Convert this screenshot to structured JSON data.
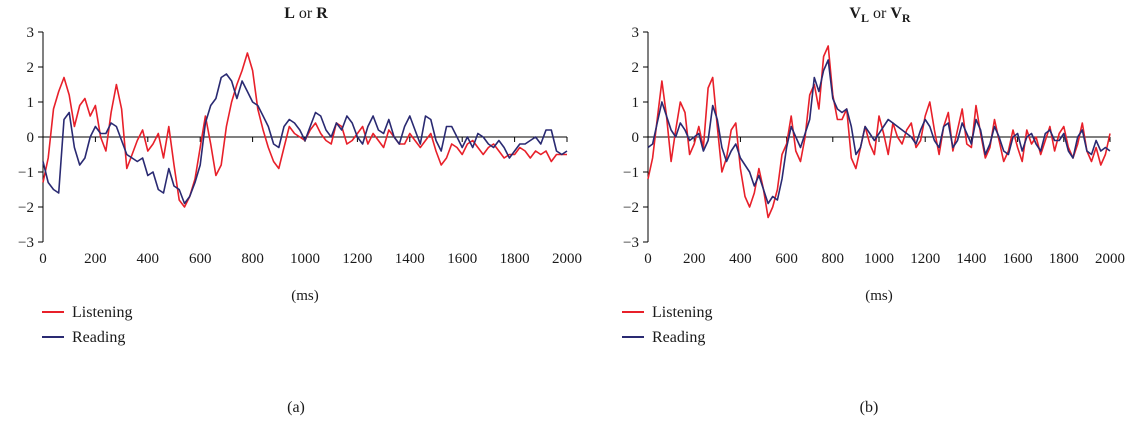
{
  "figure": {
    "panels": [
      {
        "label": "(a)"
      },
      {
        "label": "(b)"
      }
    ]
  },
  "chart_data": [
    {
      "type": "line",
      "title_parts": [
        {
          "text": "L",
          "bold": true
        },
        {
          "text": " or ",
          "bold": false
        },
        {
          "text": "R",
          "bold": true
        }
      ],
      "xlabel": "(ms)",
      "ylabel": "",
      "xlim": [
        0,
        2000
      ],
      "ylim": [
        -3,
        3
      ],
      "xticks": [
        0,
        200,
        400,
        600,
        800,
        1000,
        1200,
        1400,
        1600,
        1800,
        2000
      ],
      "yticks": [
        3,
        2,
        1,
        0,
        -1,
        -2,
        -3
      ],
      "ytick_labels": [
        "3",
        "2",
        "1",
        "0",
        "−1",
        "−2",
        "−3"
      ],
      "grid": false,
      "legend_position": "bottom-left",
      "series": [
        {
          "name": "Listening",
          "color": "#e8202a",
          "x": [
            0,
            20,
            40,
            60,
            80,
            100,
            120,
            140,
            160,
            180,
            200,
            220,
            240,
            260,
            280,
            300,
            320,
            340,
            360,
            380,
            400,
            420,
            440,
            460,
            480,
            500,
            520,
            540,
            560,
            580,
            600,
            620,
            640,
            660,
            680,
            700,
            720,
            740,
            760,
            780,
            800,
            820,
            840,
            860,
            880,
            900,
            920,
            940,
            960,
            980,
            1000,
            1020,
            1040,
            1060,
            1080,
            1100,
            1120,
            1140,
            1160,
            1180,
            1200,
            1220,
            1240,
            1260,
            1280,
            1300,
            1320,
            1340,
            1360,
            1380,
            1400,
            1420,
            1440,
            1460,
            1480,
            1500,
            1520,
            1540,
            1560,
            1580,
            1600,
            1620,
            1640,
            1660,
            1680,
            1700,
            1720,
            1740,
            1760,
            1780,
            1800,
            1820,
            1840,
            1860,
            1880,
            1900,
            1920,
            1940,
            1960,
            1980,
            2000
          ],
          "y": [
            -1.3,
            -0.6,
            0.8,
            1.3,
            1.7,
            1.2,
            0.3,
            0.9,
            1.1,
            0.6,
            0.9,
            0.0,
            -0.4,
            0.7,
            1.5,
            0.8,
            -0.9,
            -0.5,
            -0.1,
            0.2,
            -0.4,
            -0.2,
            0.1,
            -0.6,
            0.3,
            -0.8,
            -1.8,
            -2.0,
            -1.7,
            -1.2,
            -0.3,
            0.6,
            -0.2,
            -1.1,
            -0.8,
            0.3,
            1.0,
            1.5,
            1.9,
            2.4,
            1.9,
            0.8,
            0.2,
            -0.3,
            -0.7,
            -0.9,
            -0.3,
            0.3,
            0.1,
            0.0,
            -0.1,
            0.2,
            0.4,
            0.1,
            -0.1,
            -0.2,
            0.4,
            0.3,
            -0.2,
            -0.1,
            0.1,
            0.3,
            -0.2,
            0.1,
            -0.1,
            -0.3,
            0.2,
            0.0,
            -0.2,
            -0.2,
            0.1,
            -0.1,
            -0.3,
            -0.1,
            0.1,
            -0.4,
            -0.8,
            -0.6,
            -0.2,
            -0.3,
            -0.5,
            -0.2,
            -0.1,
            -0.3,
            -0.5,
            -0.3,
            -0.2,
            -0.4,
            -0.6,
            -0.5,
            -0.5,
            -0.3,
            -0.4,
            -0.6,
            -0.4,
            -0.5,
            -0.4,
            -0.7,
            -0.5,
            -0.5,
            -0.5
          ]
        },
        {
          "name": "Reading",
          "color": "#2a2a72",
          "x": [
            0,
            20,
            40,
            60,
            80,
            100,
            120,
            140,
            160,
            180,
            200,
            220,
            240,
            260,
            280,
            300,
            320,
            340,
            360,
            380,
            400,
            420,
            440,
            460,
            480,
            500,
            520,
            540,
            560,
            580,
            600,
            620,
            640,
            660,
            680,
            700,
            720,
            740,
            760,
            780,
            800,
            820,
            840,
            860,
            880,
            900,
            920,
            940,
            960,
            980,
            1000,
            1020,
            1040,
            1060,
            1080,
            1100,
            1120,
            1140,
            1160,
            1180,
            1200,
            1220,
            1240,
            1260,
            1280,
            1300,
            1320,
            1340,
            1360,
            1380,
            1400,
            1420,
            1440,
            1460,
            1480,
            1500,
            1520,
            1540,
            1560,
            1580,
            1600,
            1620,
            1640,
            1660,
            1680,
            1700,
            1720,
            1740,
            1760,
            1780,
            1800,
            1820,
            1840,
            1860,
            1880,
            1900,
            1920,
            1940,
            1960,
            1980,
            2000
          ],
          "y": [
            -0.7,
            -1.3,
            -1.5,
            -1.6,
            0.5,
            0.7,
            -0.3,
            -0.8,
            -0.6,
            0.0,
            0.3,
            0.1,
            0.1,
            0.4,
            0.3,
            -0.1,
            -0.5,
            -0.6,
            -0.7,
            -0.6,
            -1.1,
            -1.0,
            -1.5,
            -1.6,
            -0.9,
            -1.4,
            -1.5,
            -1.9,
            -1.7,
            -1.3,
            -0.8,
            0.4,
            0.9,
            1.1,
            1.7,
            1.8,
            1.6,
            1.1,
            1.6,
            1.3,
            1.0,
            0.9,
            0.6,
            0.3,
            -0.2,
            -0.3,
            0.3,
            0.5,
            0.4,
            0.2,
            -0.1,
            0.3,
            0.7,
            0.6,
            0.2,
            0.0,
            0.4,
            0.2,
            0.6,
            0.4,
            0.0,
            -0.2,
            0.3,
            0.6,
            0.2,
            0.1,
            0.5,
            0.0,
            -0.2,
            0.3,
            0.6,
            0.2,
            -0.2,
            0.6,
            0.5,
            -0.1,
            -0.4,
            0.3,
            0.3,
            0.0,
            -0.3,
            0.0,
            -0.3,
            0.1,
            0.0,
            -0.2,
            -0.3,
            -0.1,
            -0.3,
            -0.6,
            -0.4,
            -0.2,
            -0.2,
            -0.1,
            0.0,
            -0.2,
            0.2,
            0.2,
            -0.4,
            -0.5,
            -0.4
          ]
        }
      ]
    },
    {
      "type": "line",
      "title_parts": [
        {
          "text": "V",
          "bold": true
        },
        {
          "text": "L",
          "bold": true,
          "sub": true
        },
        {
          "text": " or ",
          "bold": false
        },
        {
          "text": "V",
          "bold": true
        },
        {
          "text": "R",
          "bold": true,
          "sub": true
        }
      ],
      "xlabel": "(ms)",
      "ylabel": "",
      "xlim": [
        0,
        2000
      ],
      "ylim": [
        -3,
        3
      ],
      "xticks": [
        0,
        200,
        400,
        600,
        800,
        1000,
        1200,
        1400,
        1600,
        1800,
        2000
      ],
      "yticks": [
        3,
        2,
        1,
        0,
        -1,
        -2,
        -3
      ],
      "ytick_labels": [
        "3",
        "2",
        "1",
        "0",
        "−1",
        "−2",
        "−3"
      ],
      "grid": false,
      "legend_position": "bottom-left",
      "series": [
        {
          "name": "Listening",
          "color": "#e8202a",
          "x": [
            0,
            20,
            40,
            60,
            80,
            100,
            120,
            140,
            160,
            180,
            200,
            220,
            240,
            260,
            280,
            300,
            320,
            340,
            360,
            380,
            400,
            420,
            440,
            460,
            480,
            500,
            520,
            540,
            560,
            580,
            600,
            620,
            640,
            660,
            680,
            700,
            720,
            740,
            760,
            780,
            800,
            820,
            840,
            860,
            880,
            900,
            920,
            940,
            960,
            980,
            1000,
            1020,
            1040,
            1060,
            1080,
            1100,
            1120,
            1140,
            1160,
            1180,
            1200,
            1220,
            1240,
            1260,
            1280,
            1300,
            1320,
            1340,
            1360,
            1380,
            1400,
            1420,
            1440,
            1460,
            1480,
            1500,
            1520,
            1540,
            1560,
            1580,
            1600,
            1620,
            1640,
            1660,
            1680,
            1700,
            1720,
            1740,
            1760,
            1780,
            1800,
            1820,
            1840,
            1860,
            1880,
            1900,
            1920,
            1940,
            1960,
            1980,
            2000
          ],
          "y": [
            -1.2,
            -0.6,
            0.5,
            1.6,
            0.6,
            -0.7,
            0.2,
            1.0,
            0.7,
            -0.5,
            -0.2,
            0.3,
            -0.3,
            1.4,
            1.7,
            0.3,
            -1.0,
            -0.6,
            0.2,
            0.4,
            -0.9,
            -1.7,
            -2.0,
            -1.6,
            -0.9,
            -1.5,
            -2.3,
            -2.0,
            -1.5,
            -0.5,
            -0.2,
            0.6,
            -0.4,
            -0.7,
            0.0,
            1.2,
            1.5,
            0.8,
            2.3,
            2.6,
            1.2,
            0.5,
            0.5,
            0.8,
            -0.6,
            -0.9,
            -0.3,
            0.3,
            -0.2,
            -0.5,
            0.6,
            0.1,
            -0.5,
            0.4,
            0.0,
            -0.2,
            0.2,
            0.4,
            -0.3,
            -0.1,
            0.6,
            1.0,
            0.2,
            -0.5,
            0.3,
            0.7,
            -0.4,
            0.2,
            0.8,
            -0.2,
            -0.3,
            0.9,
            0.1,
            -0.6,
            -0.3,
            0.5,
            -0.1,
            -0.7,
            -0.4,
            0.2,
            -0.3,
            -0.7,
            0.2,
            -0.2,
            0.0,
            -0.5,
            -0.1,
            0.3,
            -0.4,
            0.1,
            0.3,
            -0.3,
            -0.6,
            -0.2,
            0.4,
            -0.4,
            -0.7,
            -0.3,
            -0.8,
            -0.5,
            0.1
          ]
        },
        {
          "name": "Reading",
          "color": "#2a2a72",
          "x": [
            0,
            20,
            40,
            60,
            80,
            100,
            120,
            140,
            160,
            180,
            200,
            220,
            240,
            260,
            280,
            300,
            320,
            340,
            360,
            380,
            400,
            420,
            440,
            460,
            480,
            500,
            520,
            540,
            560,
            580,
            600,
            620,
            640,
            660,
            680,
            700,
            720,
            740,
            760,
            780,
            800,
            820,
            840,
            860,
            880,
            900,
            920,
            940,
            960,
            980,
            1000,
            1020,
            1040,
            1060,
            1080,
            1100,
            1120,
            1140,
            1160,
            1180,
            1200,
            1220,
            1240,
            1260,
            1280,
            1300,
            1320,
            1340,
            1360,
            1380,
            1400,
            1420,
            1440,
            1460,
            1480,
            1500,
            1520,
            1540,
            1560,
            1580,
            1600,
            1620,
            1640,
            1660,
            1680,
            1700,
            1720,
            1740,
            1760,
            1780,
            1800,
            1820,
            1840,
            1860,
            1880,
            1900,
            1920,
            1940,
            1960,
            1980,
            2000
          ],
          "y": [
            -0.3,
            -0.2,
            0.4,
            1.0,
            0.6,
            0.2,
            0.0,
            0.4,
            0.2,
            -0.1,
            0.0,
            0.1,
            -0.4,
            -0.1,
            0.9,
            0.5,
            -0.3,
            -0.7,
            -0.4,
            -0.2,
            -0.6,
            -0.8,
            -1.0,
            -1.4,
            -1.1,
            -1.5,
            -1.9,
            -1.7,
            -1.8,
            -1.2,
            -0.3,
            0.3,
            0.0,
            -0.3,
            0.1,
            0.5,
            1.7,
            1.3,
            1.9,
            2.2,
            1.1,
            0.8,
            0.7,
            0.8,
            0.3,
            -0.5,
            -0.3,
            0.3,
            0.1,
            -0.1,
            0.1,
            0.3,
            0.5,
            0.4,
            0.3,
            0.2,
            0.1,
            0.0,
            -0.2,
            0.2,
            0.5,
            0.3,
            -0.1,
            -0.3,
            0.3,
            0.4,
            -0.3,
            -0.1,
            0.4,
            0.1,
            -0.2,
            0.5,
            0.2,
            -0.5,
            -0.2,
            0.3,
            0.0,
            -0.4,
            -0.5,
            0.0,
            0.1,
            -0.4,
            0.0,
            0.1,
            -0.2,
            -0.4,
            0.1,
            0.2,
            -0.1,
            -0.1,
            0.1,
            -0.4,
            -0.6,
            0.0,
            0.2,
            -0.4,
            -0.5,
            -0.1,
            -0.4,
            -0.3,
            -0.4
          ]
        }
      ]
    }
  ]
}
